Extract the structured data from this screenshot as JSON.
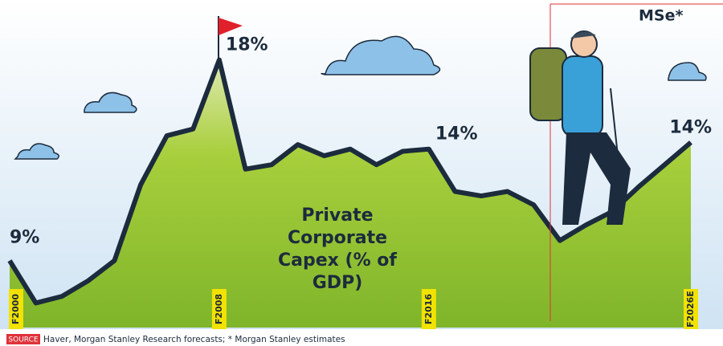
{
  "chart_data": {
    "type": "line",
    "title": "Private Corporate Capex (% of GDP)",
    "categories": [
      "F2000",
      null,
      null,
      null,
      null,
      null,
      null,
      null,
      "F2008",
      null,
      null,
      null,
      null,
      null,
      null,
      null,
      "F2016",
      null,
      null,
      null,
      null,
      null,
      null,
      null,
      null,
      null,
      "F2026E"
    ],
    "series": [
      {
        "color": "#1c2b3d",
        "values": [
          9.0,
          7.1,
          7.4,
          8.1,
          9.0,
          12.4,
          14.6,
          14.9,
          18.0,
          13.1,
          13.3,
          14.2,
          13.7,
          14.0,
          13.3,
          13.9,
          14.0,
          12.1,
          11.9,
          12.1,
          11.5,
          9.9,
          10.6,
          11.2,
          12.3,
          13.3,
          14.3
        ],
        "value_labels": [
          "9%",
          null,
          null,
          null,
          null,
          null,
          null,
          null,
          "18%",
          null,
          null,
          null,
          null,
          null,
          null,
          null,
          "14%",
          null,
          null,
          null,
          null,
          null,
          null,
          null,
          null,
          null,
          "14%"
        ]
      }
    ],
    "ylim": [
      6,
      20
    ],
    "annotation": "MSe*",
    "source_tag": "SOURCE",
    "source": "Haver, Morgan Stanley Research forecasts; * Morgan Stanley estimates"
  }
}
